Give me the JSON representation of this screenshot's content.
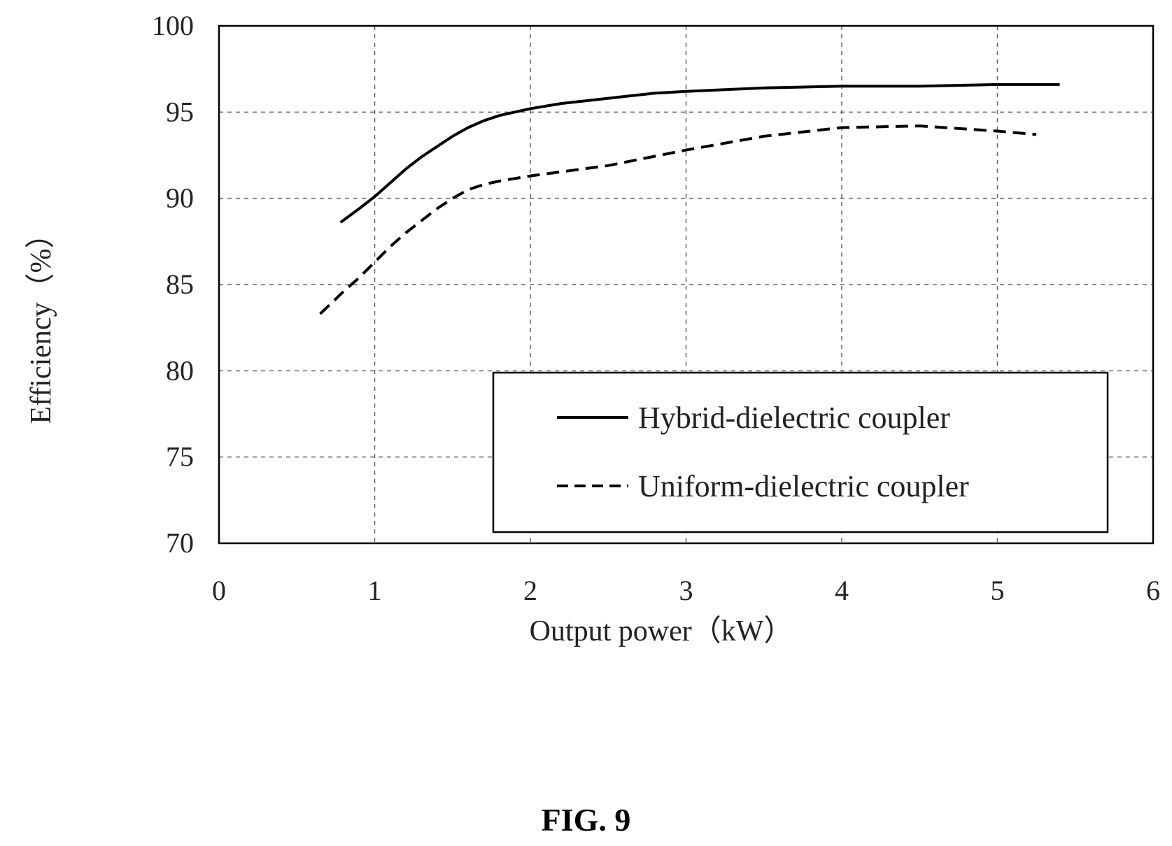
{
  "figure": {
    "caption": "FIG. 9"
  },
  "chart_data": {
    "type": "line",
    "xlabel": "Output power（kW）",
    "ylabel": "Efficiency（%）",
    "xlim": [
      0,
      6
    ],
    "ylim": [
      70,
      100
    ],
    "xticks": [
      0,
      1,
      2,
      3,
      4,
      5,
      6
    ],
    "yticks": [
      70,
      75,
      80,
      85,
      90,
      95,
      100
    ],
    "xtick_labels": [
      "0",
      "1",
      "2",
      "3",
      "4",
      "5",
      "6"
    ],
    "ytick_labels": [
      "70",
      "75",
      "80",
      "85",
      "90",
      "95",
      "100"
    ],
    "grid": true,
    "legend_position": "bottom-right",
    "series": [
      {
        "name": "Hybrid-dielectric coupler",
        "style": "solid",
        "color": "#000000",
        "x": [
          0.78,
          0.9,
          1.0,
          1.1,
          1.2,
          1.3,
          1.4,
          1.5,
          1.6,
          1.7,
          1.8,
          1.9,
          2.0,
          2.2,
          2.5,
          2.8,
          3.0,
          3.5,
          4.0,
          4.5,
          5.0,
          5.4
        ],
        "y": [
          88.6,
          89.4,
          90.1,
          90.9,
          91.7,
          92.4,
          93.0,
          93.6,
          94.1,
          94.5,
          94.8,
          95.0,
          95.2,
          95.5,
          95.8,
          96.1,
          96.2,
          96.4,
          96.5,
          96.5,
          96.6,
          96.6
        ]
      },
      {
        "name": "Uniform-dielectric coupler",
        "style": "dashed",
        "color": "#000000",
        "x": [
          0.65,
          0.8,
          0.9,
          1.0,
          1.1,
          1.2,
          1.3,
          1.4,
          1.5,
          1.6,
          1.7,
          1.8,
          2.0,
          2.5,
          3.0,
          3.5,
          4.0,
          4.5,
          5.0,
          5.25
        ],
        "y": [
          83.3,
          84.6,
          85.4,
          86.3,
          87.2,
          88.0,
          88.7,
          89.4,
          90.0,
          90.5,
          90.8,
          91.0,
          91.3,
          91.9,
          92.8,
          93.6,
          94.1,
          94.2,
          93.9,
          93.7
        ]
      }
    ]
  }
}
